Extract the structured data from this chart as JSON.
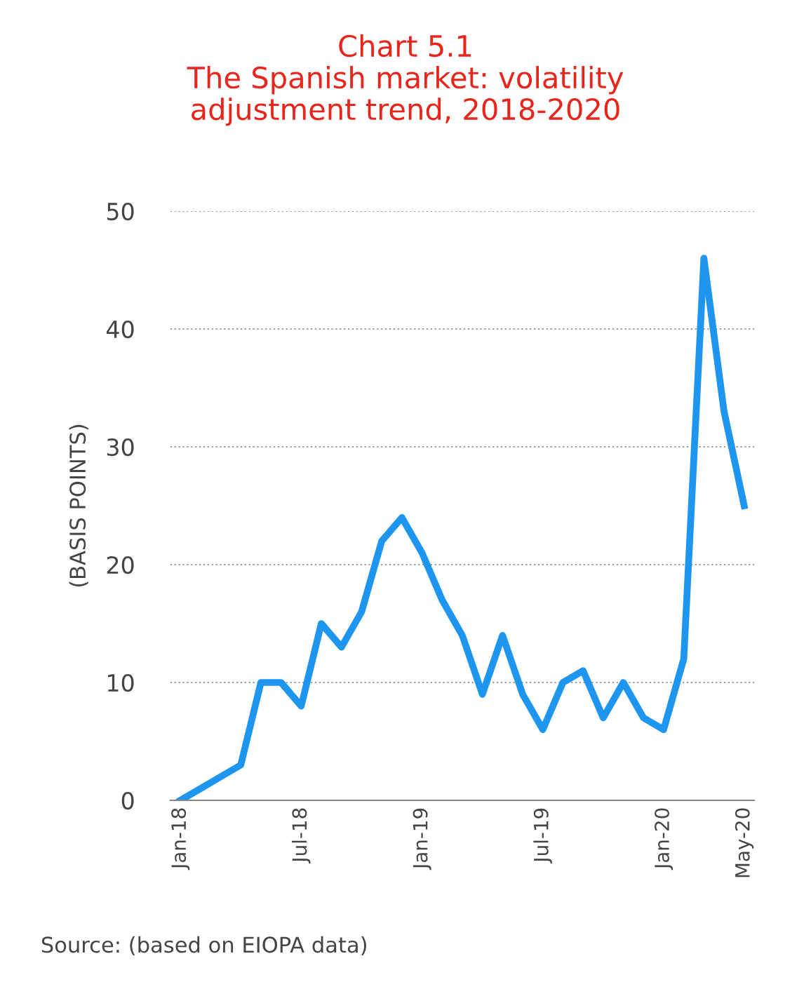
{
  "chart_data": {
    "type": "line",
    "title": "Chart 5.1\nThe Spanish market: volatility\nadjustment trend, 2018-2020",
    "ylabel": "(BASIS POINTS)",
    "categories": [
      "Jan-18",
      null,
      null,
      null,
      null,
      null,
      "Jul-18",
      null,
      null,
      null,
      null,
      null,
      "Jan-19",
      null,
      null,
      null,
      null,
      null,
      "Jul-19",
      null,
      null,
      null,
      null,
      null,
      "Jan-20",
      null,
      null,
      null,
      "May-20"
    ],
    "series": [
      {
        "color": "#1e96f0",
        "values": [
          0,
          1,
          2,
          3,
          10,
          10,
          8,
          15,
          13,
          16,
          22,
          24,
          21,
          17,
          14,
          9,
          14,
          9,
          6,
          10,
          11,
          7,
          10,
          7,
          6,
          12,
          46,
          33,
          25
        ]
      }
    ],
    "ylim": [
      0,
      50
    ],
    "yticks": [
      0,
      10,
      20,
      30,
      40,
      50
    ],
    "grid": "y",
    "legend": false,
    "marker": "none",
    "line_style": "solid",
    "annotations": [
      "Source: (based on EIOPA data)"
    ]
  }
}
